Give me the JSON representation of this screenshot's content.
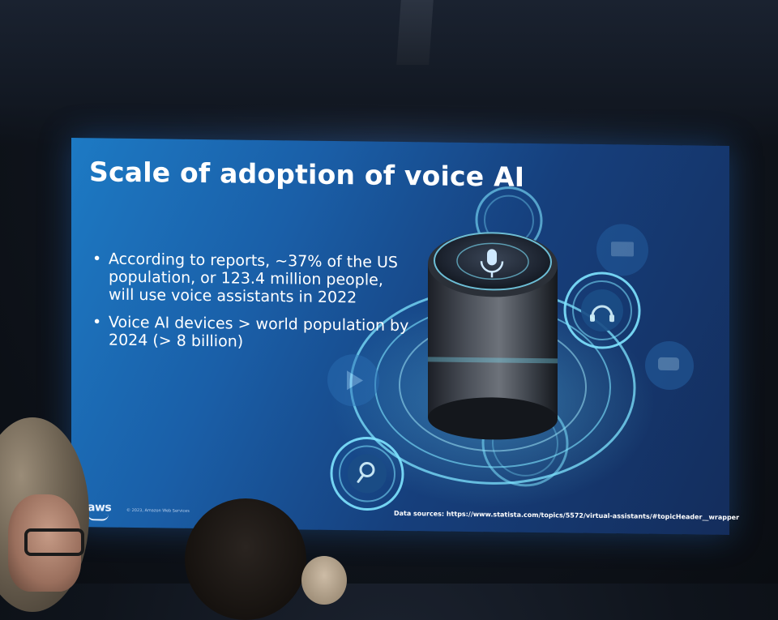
{
  "slide": {
    "title": "Scale of adoption of voice AI",
    "bullets": [
      "According to reports, ~37% of the US population, or 123.4 million people, will use voice assistants in 2022",
      "Voice AI devices > world population by 2024 (> 8 billion)"
    ],
    "logo_text": "aws",
    "copyright": "© 2023, Amazon Web Services",
    "sources": "Data sources: https://www.statista.com/topics/5572/virtual-assistants/#topicHeader__wrapper"
  },
  "icons": [
    "microphone-icon",
    "headset-icon",
    "search-icon",
    "play-icon",
    "chat-icon"
  ],
  "colors": {
    "slide_bg_light": "#1d7ac4",
    "slide_bg_dark": "#142d5c",
    "glow": "#5fd0ff",
    "text": "#ffffff"
  }
}
